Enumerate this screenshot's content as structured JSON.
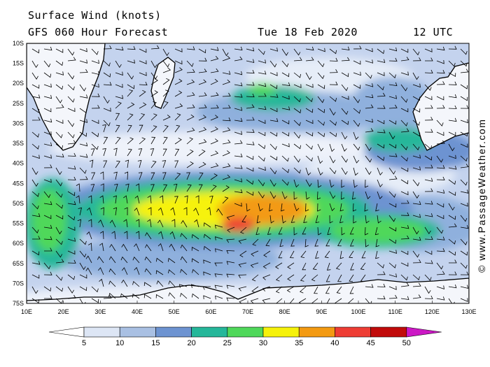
{
  "header": {
    "title": "Surface Wind (knots)",
    "model": "GFS 060 Hour Forecast",
    "date": "Tue 18 Feb 2020",
    "time": "12 UTC"
  },
  "credit": "© www.PassageWeather.com",
  "axes": {
    "latitudes": [
      "10S",
      "15S",
      "20S",
      "25S",
      "30S",
      "35S",
      "40S",
      "45S",
      "50S",
      "55S",
      "60S",
      "65S",
      "70S",
      "75S"
    ],
    "longitudes": [
      "10E",
      "20E",
      "30E",
      "40E",
      "50E",
      "60E",
      "70E",
      "80E",
      "90E",
      "100E",
      "110E",
      "120E",
      "130E"
    ]
  },
  "legend": {
    "labels": [
      "5",
      "10",
      "15",
      "20",
      "25",
      "30",
      "35",
      "40",
      "45",
      "50"
    ],
    "colors": [
      "#ffffff",
      "#dde6f5",
      "#a9c0e3",
      "#6d93d1",
      "#25b79a",
      "#4fd85a",
      "#f6f20a",
      "#f39a12",
      "#ee3d34",
      "#c10b0b",
      "#cc18c5"
    ]
  },
  "map_colors": {
    "ocean_calm": "#dde6f5",
    "land": "#f4f6fb",
    "coast": "#000000",
    "high_wind": "#f39a12",
    "storm_core": "#ee3d34"
  }
}
